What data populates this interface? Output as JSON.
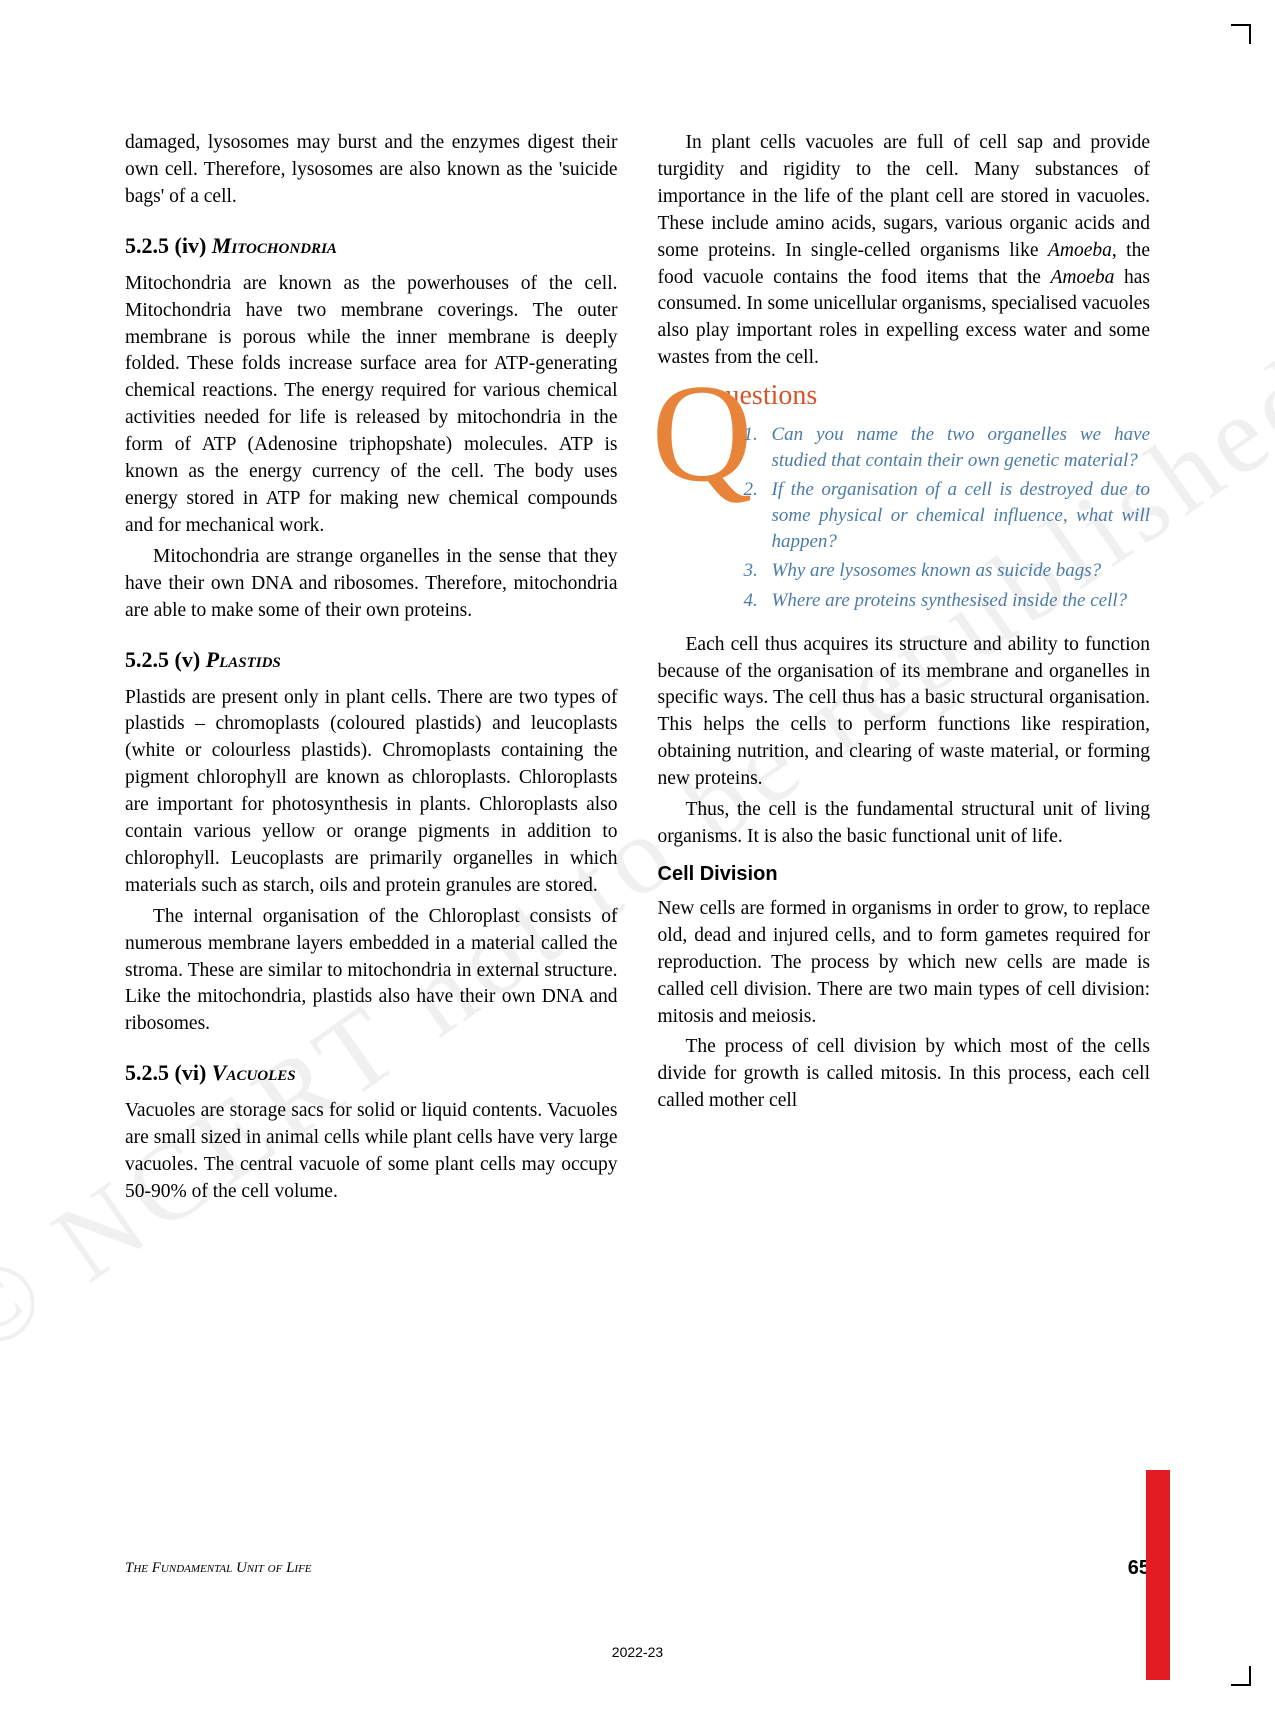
{
  "watermark": "© NCERT not to be republished",
  "leftColumn": {
    "p1": "damaged, lysosomes may burst and the enzymes digest their own cell. Therefore, lysosomes are also known as the 'suicide bags' of a cell.",
    "h1_num": "5.2.5 (iv) ",
    "h1_title": "Mitochondria",
    "p2": "Mitochondria are known as the powerhouses of the cell. Mitochondria have two membrane coverings. The outer membrane is porous while the inner membrane is deeply folded. These folds increase surface area for ATP-generating chemical reactions. The energy required for various chemical activities needed for life is released by mitochondria in the form of ATP (Adenosine triphopshate) molecules. ATP is known as the energy currency of the cell. The body uses energy stored in ATP for making new chemical compounds and for mechanical work.",
    "p3": "Mitochondria are strange organelles in the sense that they have their own DNA and ribosomes. Therefore, mitochondria are able to make some of their own proteins.",
    "h2_num": "5.2.5 (v) ",
    "h2_title": "Plastids",
    "p4": "Plastids are present only in plant cells. There are two types of plastids – chromoplasts (coloured plastids) and leucoplasts (white or colourless plastids). Chromoplasts containing the pigment chlorophyll are known as chloroplasts. Chloroplasts are important for photosynthesis in plants. Chloroplasts also contain various yellow or orange pigments in addition to chlorophyll. Leucoplasts are primarily organelles in which materials such as starch, oils and protein granules are stored.",
    "p5": "The internal organisation of the Chloroplast consists of numerous membrane layers embedded in a material called the stroma. These are similar to mitochondria in external structure. Like the mitochondria, plastids also have their own DNA and ribosomes.",
    "h3_num": "5.2.5 (vi) ",
    "h3_title": "Vacuoles",
    "p6": "Vacuoles are storage sacs for solid or liquid contents. Vacuoles are small sized in animal cells while plant cells have very large vacuoles. The central vacuole of some plant cells may occupy 50-90% of the cell volume."
  },
  "rightColumn": {
    "p1_a": "In plant cells vacuoles are full of cell sap and provide turgidity and rigidity to the cell. Many substances of importance in the life of the plant cell are stored in vacuoles. These include amino acids, sugars, various organic acids and some proteins. In single-celled organisms like ",
    "p1_b": "Amoeba",
    "p1_c": ", the food vacuole contains the food items that the ",
    "p1_d": "Amoeba",
    "p1_e": " has consumed. In some unicellular organisms, specialised vacuoles also play important roles in expelling excess water and some wastes from the cell.",
    "questions": {
      "title": "uestions",
      "items": [
        "Can you name the two organelles we have studied that contain their own genetic material?",
        "If the organisation of a cell is destroyed due to some physical or chemical influence, what will happen?",
        "Why are lysosomes known as suicide bags?",
        "Where are proteins synthesised inside the cell?"
      ]
    },
    "p2": "Each cell thus acquires its structure and ability to function because of the organisation of its membrane and organelles in specific ways. The cell thus has a basic structural organisation. This helps the cells to perform functions like respiration, obtaining nutrition, and clearing of waste material, or forming new proteins.",
    "p3": "Thus, the cell is the fundamental structural unit of living organisms. It is also the basic functional unit of life.",
    "sub1": "Cell Division",
    "p4": "New cells are formed in organisms in order to grow, to replace old, dead and injured cells, and to form gametes required for reproduction. The process by which new cells are made is called cell division. There are two main types of cell division: mitosis and meiosis.",
    "p5": "The process of cell division by which most of the cells divide for growth is called mitosis. In this process, each cell called mother cell"
  },
  "footer": {
    "title": "The Fundamental Unit of Life",
    "pageNum": "65",
    "year": "2022-23"
  },
  "colors": {
    "q_letter": "#e8833a",
    "q_title": "#d1572a",
    "q_item": "#4a7ba6",
    "red_bar": "#e31b23"
  }
}
